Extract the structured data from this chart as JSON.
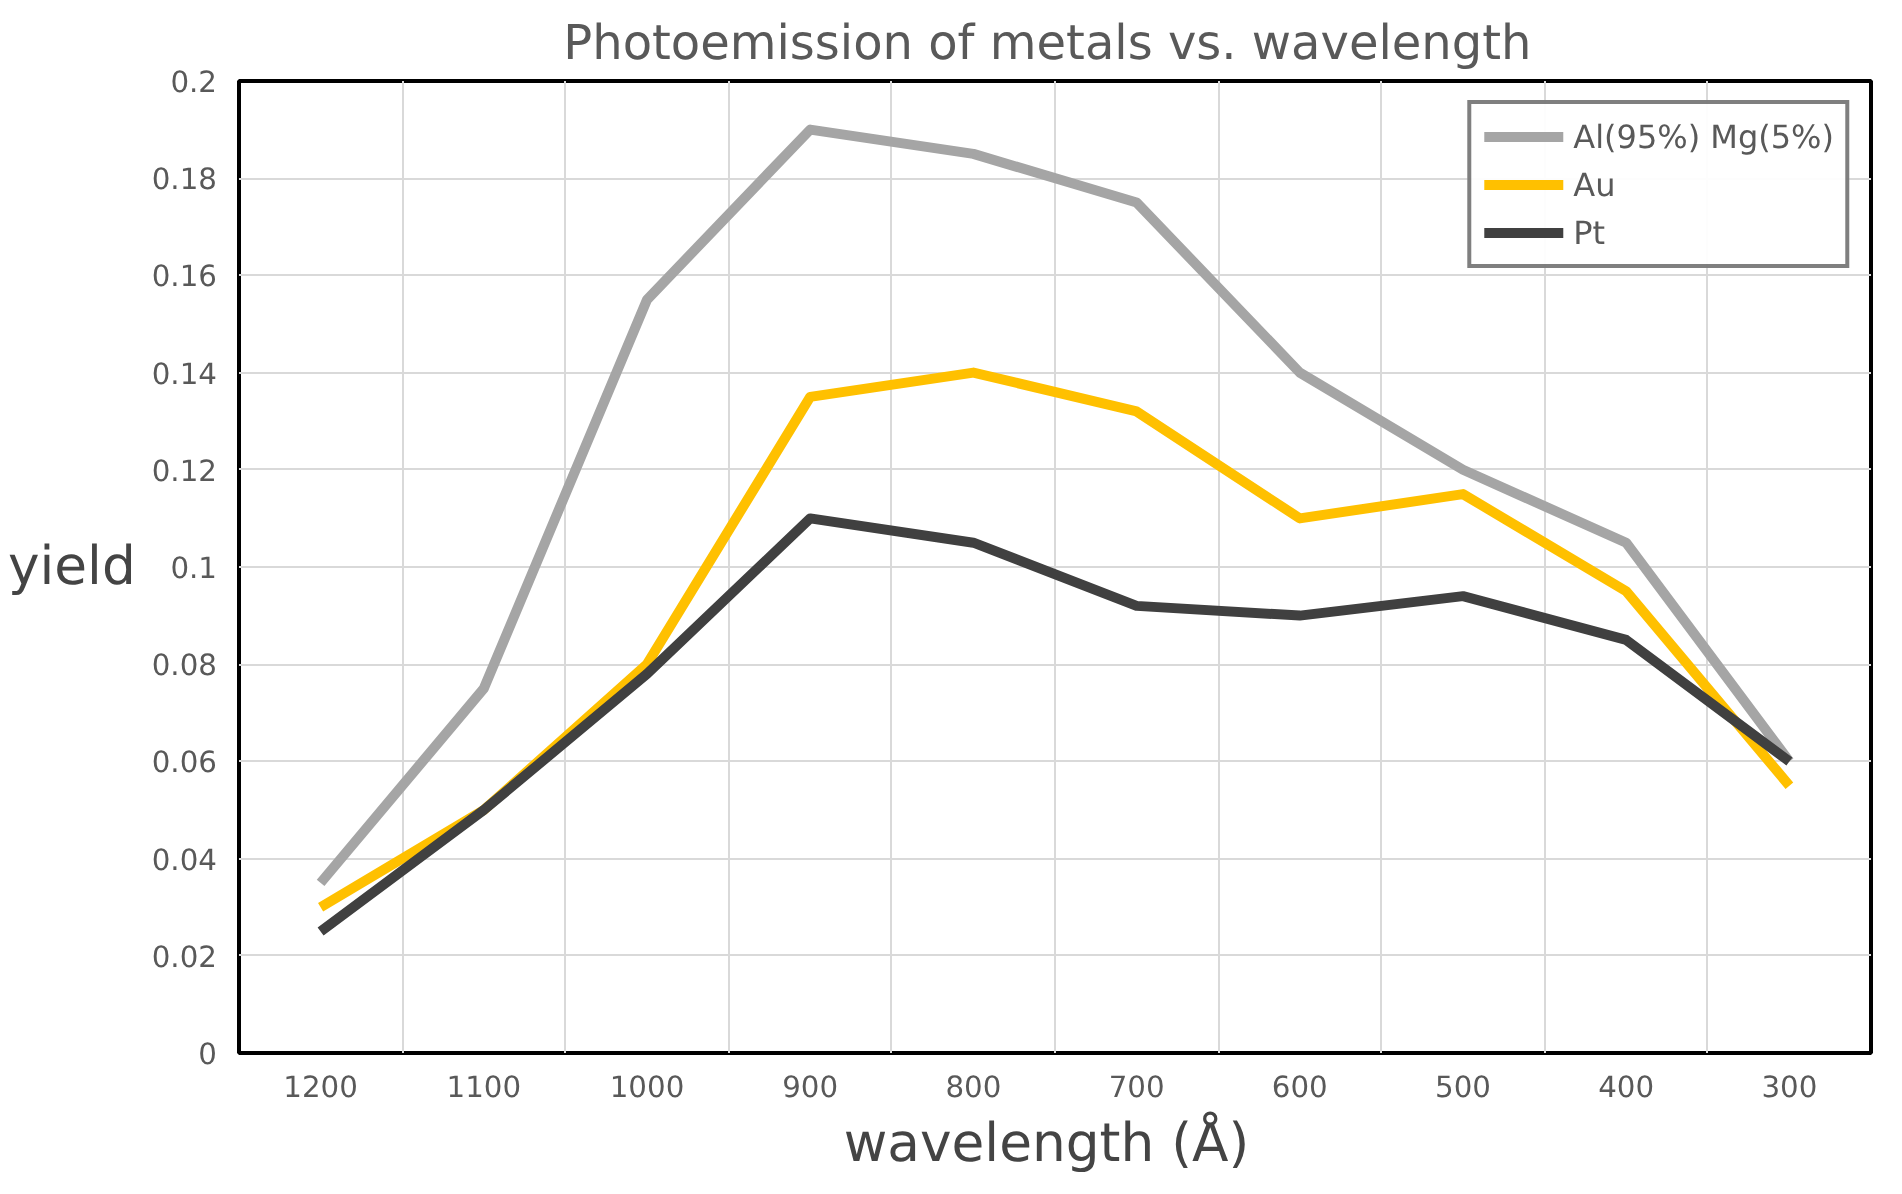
{
  "chart_data": {
    "type": "line",
    "title": "Photoemission  of metals vs. wavelength",
    "xlabel": "wavelength  (Å)",
    "ylabel": "yield",
    "categories": [
      "1200",
      "1100",
      "1000",
      "900",
      "800",
      "700",
      "600",
      "500",
      "400",
      "300"
    ],
    "ylim": [
      0,
      0.2
    ],
    "yticks": [
      0,
      {
        "value": 0.02,
        "label": "0.02"
      },
      {
        "value": 0.04,
        "label": "0.04"
      },
      {
        "value": 0.06,
        "label": "0.06"
      },
      {
        "value": 0.08,
        "label": "0.08"
      },
      {
        "value": 0.1,
        "label": "0.1"
      },
      {
        "value": 0.12,
        "label": "0.12"
      },
      {
        "value": 0.14,
        "label": "0.14"
      },
      {
        "value": 0.16,
        "label": "0.16"
      },
      {
        "value": 0.18,
        "label": "0.18"
      },
      {
        "value": 0.2,
        "label": "0.2"
      }
    ],
    "grid": true,
    "legend": "top right",
    "marker": "none",
    "line_style": "solid",
    "series": [
      {
        "name": "Al(95%) Mg(5%)",
        "color": "#a5a5a5",
        "values": [
          0.035,
          0.075,
          0.155,
          0.19,
          0.185,
          0.175,
          0.14,
          0.12,
          0.105,
          0.06
        ]
      },
      {
        "name": "Au",
        "color": "#ffc000",
        "values": [
          0.03,
          0.05,
          0.08,
          0.135,
          0.14,
          0.132,
          0.11,
          0.115,
          0.095,
          0.055
        ]
      },
      {
        "name": "Pt",
        "color": "#404040",
        "values": [
          0.025,
          0.05,
          0.078,
          0.11,
          0.105,
          0.092,
          0.09,
          0.094,
          0.085,
          0.06
        ]
      }
    ]
  }
}
